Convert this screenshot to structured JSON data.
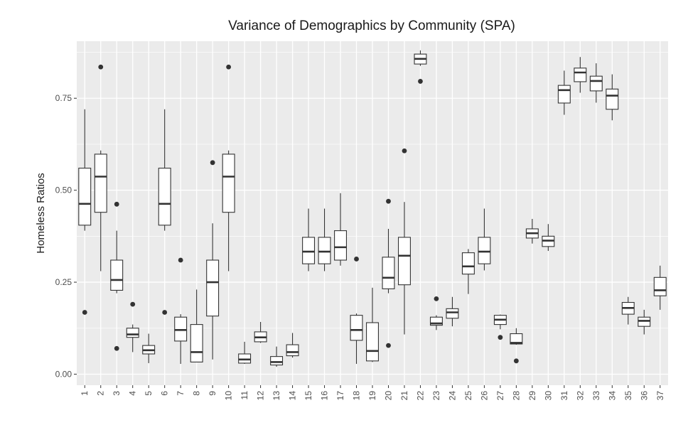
{
  "chart_data": {
    "type": "boxplot",
    "title": "Variance of Demographics by Community (SPA)",
    "xlabel": "",
    "ylabel": "Homeless Ratios",
    "ylim": [
      -0.03,
      0.905
    ],
    "yticks": [
      0.0,
      0.25,
      0.5,
      0.75
    ],
    "ytick_labels": [
      "0.00",
      "0.25",
      "0.50",
      "0.75"
    ],
    "grid": true,
    "legend": "none",
    "categories": [
      "1",
      "2",
      "3",
      "4",
      "5",
      "6",
      "7",
      "8",
      "9",
      "10",
      "11",
      "12",
      "13",
      "14",
      "15",
      "16",
      "17",
      "18",
      "19",
      "20",
      "21",
      "22",
      "23",
      "24",
      "25",
      "26",
      "27",
      "28",
      "29",
      "30",
      "31",
      "32",
      "33",
      "34",
      "35",
      "36",
      "37"
    ],
    "boxes": [
      {
        "min": 0.39,
        "q1": 0.405,
        "median": 0.463,
        "q3": 0.56,
        "max": 0.72,
        "outliers": [
          0.168
        ]
      },
      {
        "min": 0.28,
        "q1": 0.44,
        "median": 0.537,
        "q3": 0.598,
        "max": 0.608,
        "outliers": [
          0.835
        ]
      },
      {
        "min": 0.22,
        "q1": 0.228,
        "median": 0.256,
        "q3": 0.31,
        "max": 0.39,
        "outliers": [
          0.462,
          0.07
        ]
      },
      {
        "min": 0.06,
        "q1": 0.1,
        "median": 0.108,
        "q3": 0.125,
        "max": 0.135,
        "outliers": [
          0.19
        ]
      },
      {
        "min": 0.03,
        "q1": 0.055,
        "median": 0.065,
        "q3": 0.078,
        "max": 0.11,
        "outliers": []
      },
      {
        "min": 0.39,
        "q1": 0.405,
        "median": 0.463,
        "q3": 0.56,
        "max": 0.72,
        "outliers": [
          0.168
        ]
      },
      {
        "min": 0.028,
        "q1": 0.09,
        "median": 0.12,
        "q3": 0.155,
        "max": 0.163,
        "outliers": [
          0.31
        ]
      },
      {
        "min": 0.033,
        "q1": 0.033,
        "median": 0.06,
        "q3": 0.135,
        "max": 0.23,
        "outliers": []
      },
      {
        "min": 0.04,
        "q1": 0.158,
        "median": 0.25,
        "q3": 0.31,
        "max": 0.41,
        "outliers": [
          0.575
        ]
      },
      {
        "min": 0.28,
        "q1": 0.44,
        "median": 0.537,
        "q3": 0.598,
        "max": 0.608,
        "outliers": [
          0.835
        ]
      },
      {
        "min": 0.028,
        "q1": 0.03,
        "median": 0.04,
        "q3": 0.055,
        "max": 0.088,
        "outliers": []
      },
      {
        "min": 0.085,
        "q1": 0.088,
        "median": 0.1,
        "q3": 0.115,
        "max": 0.142,
        "outliers": []
      },
      {
        "min": 0.02,
        "q1": 0.025,
        "median": 0.033,
        "q3": 0.048,
        "max": 0.075,
        "outliers": []
      },
      {
        "min": 0.045,
        "q1": 0.05,
        "median": 0.06,
        "q3": 0.08,
        "max": 0.112,
        "outliers": []
      },
      {
        "min": 0.28,
        "q1": 0.3,
        "median": 0.333,
        "q3": 0.372,
        "max": 0.45,
        "outliers": []
      },
      {
        "min": 0.28,
        "q1": 0.3,
        "median": 0.333,
        "q3": 0.372,
        "max": 0.45,
        "outliers": []
      },
      {
        "min": 0.295,
        "q1": 0.31,
        "median": 0.345,
        "q3": 0.39,
        "max": 0.492,
        "outliers": []
      },
      {
        "min": 0.028,
        "q1": 0.092,
        "median": 0.12,
        "q3": 0.16,
        "max": 0.165,
        "outliers": [
          0.313
        ]
      },
      {
        "min": 0.033,
        "q1": 0.036,
        "median": 0.063,
        "q3": 0.14,
        "max": 0.235,
        "outliers": []
      },
      {
        "min": 0.22,
        "q1": 0.232,
        "median": 0.262,
        "q3": 0.318,
        "max": 0.395,
        "outliers": [
          0.47,
          0.078
        ]
      },
      {
        "min": 0.108,
        "q1": 0.243,
        "median": 0.322,
        "q3": 0.372,
        "max": 0.468,
        "outliers": [
          0.607
        ]
      },
      {
        "min": 0.838,
        "q1": 0.843,
        "median": 0.857,
        "q3": 0.87,
        "max": 0.88,
        "outliers": [
          0.796
        ]
      },
      {
        "min": 0.12,
        "q1": 0.133,
        "median": 0.138,
        "q3": 0.155,
        "max": 0.16,
        "outliers": [
          0.205
        ]
      },
      {
        "min": 0.13,
        "q1": 0.152,
        "median": 0.168,
        "q3": 0.178,
        "max": 0.21,
        "outliers": []
      },
      {
        "min": 0.218,
        "q1": 0.272,
        "median": 0.293,
        "q3": 0.33,
        "max": 0.34,
        "outliers": []
      },
      {
        "min": 0.282,
        "q1": 0.3,
        "median": 0.333,
        "q3": 0.372,
        "max": 0.45,
        "outliers": []
      },
      {
        "min": 0.122,
        "q1": 0.135,
        "median": 0.148,
        "q3": 0.16,
        "max": 0.162,
        "outliers": [
          0.1
        ]
      },
      {
        "min": 0.08,
        "q1": 0.082,
        "median": 0.085,
        "q3": 0.11,
        "max": 0.125,
        "outliers": [
          0.036
        ]
      },
      {
        "min": 0.355,
        "q1": 0.37,
        "median": 0.383,
        "q3": 0.395,
        "max": 0.422,
        "outliers": []
      },
      {
        "min": 0.335,
        "q1": 0.347,
        "median": 0.363,
        "q3": 0.375,
        "max": 0.408,
        "outliers": []
      },
      {
        "min": 0.705,
        "q1": 0.737,
        "median": 0.772,
        "q3": 0.785,
        "max": 0.825,
        "outliers": []
      },
      {
        "min": 0.765,
        "q1": 0.795,
        "median": 0.82,
        "q3": 0.832,
        "max": 0.862,
        "outliers": []
      },
      {
        "min": 0.738,
        "q1": 0.77,
        "median": 0.797,
        "q3": 0.81,
        "max": 0.845,
        "outliers": []
      },
      {
        "min": 0.69,
        "q1": 0.72,
        "median": 0.757,
        "q3": 0.775,
        "max": 0.815,
        "outliers": []
      },
      {
        "min": 0.135,
        "q1": 0.163,
        "median": 0.18,
        "q3": 0.195,
        "max": 0.21,
        "outliers": []
      },
      {
        "min": 0.108,
        "q1": 0.13,
        "median": 0.145,
        "q3": 0.155,
        "max": 0.175,
        "outliers": []
      },
      {
        "min": 0.175,
        "q1": 0.213,
        "median": 0.228,
        "q3": 0.263,
        "max": 0.295,
        "outliers": []
      }
    ]
  },
  "colors": {
    "panel_background": "#ebebeb",
    "grid_line": "#ffffff",
    "box_fill": "#ffffff",
    "box_stroke": "#333333",
    "outlier": "#333333",
    "tick_text": "#4d4d4d",
    "title_text": "#1a1a1a"
  }
}
